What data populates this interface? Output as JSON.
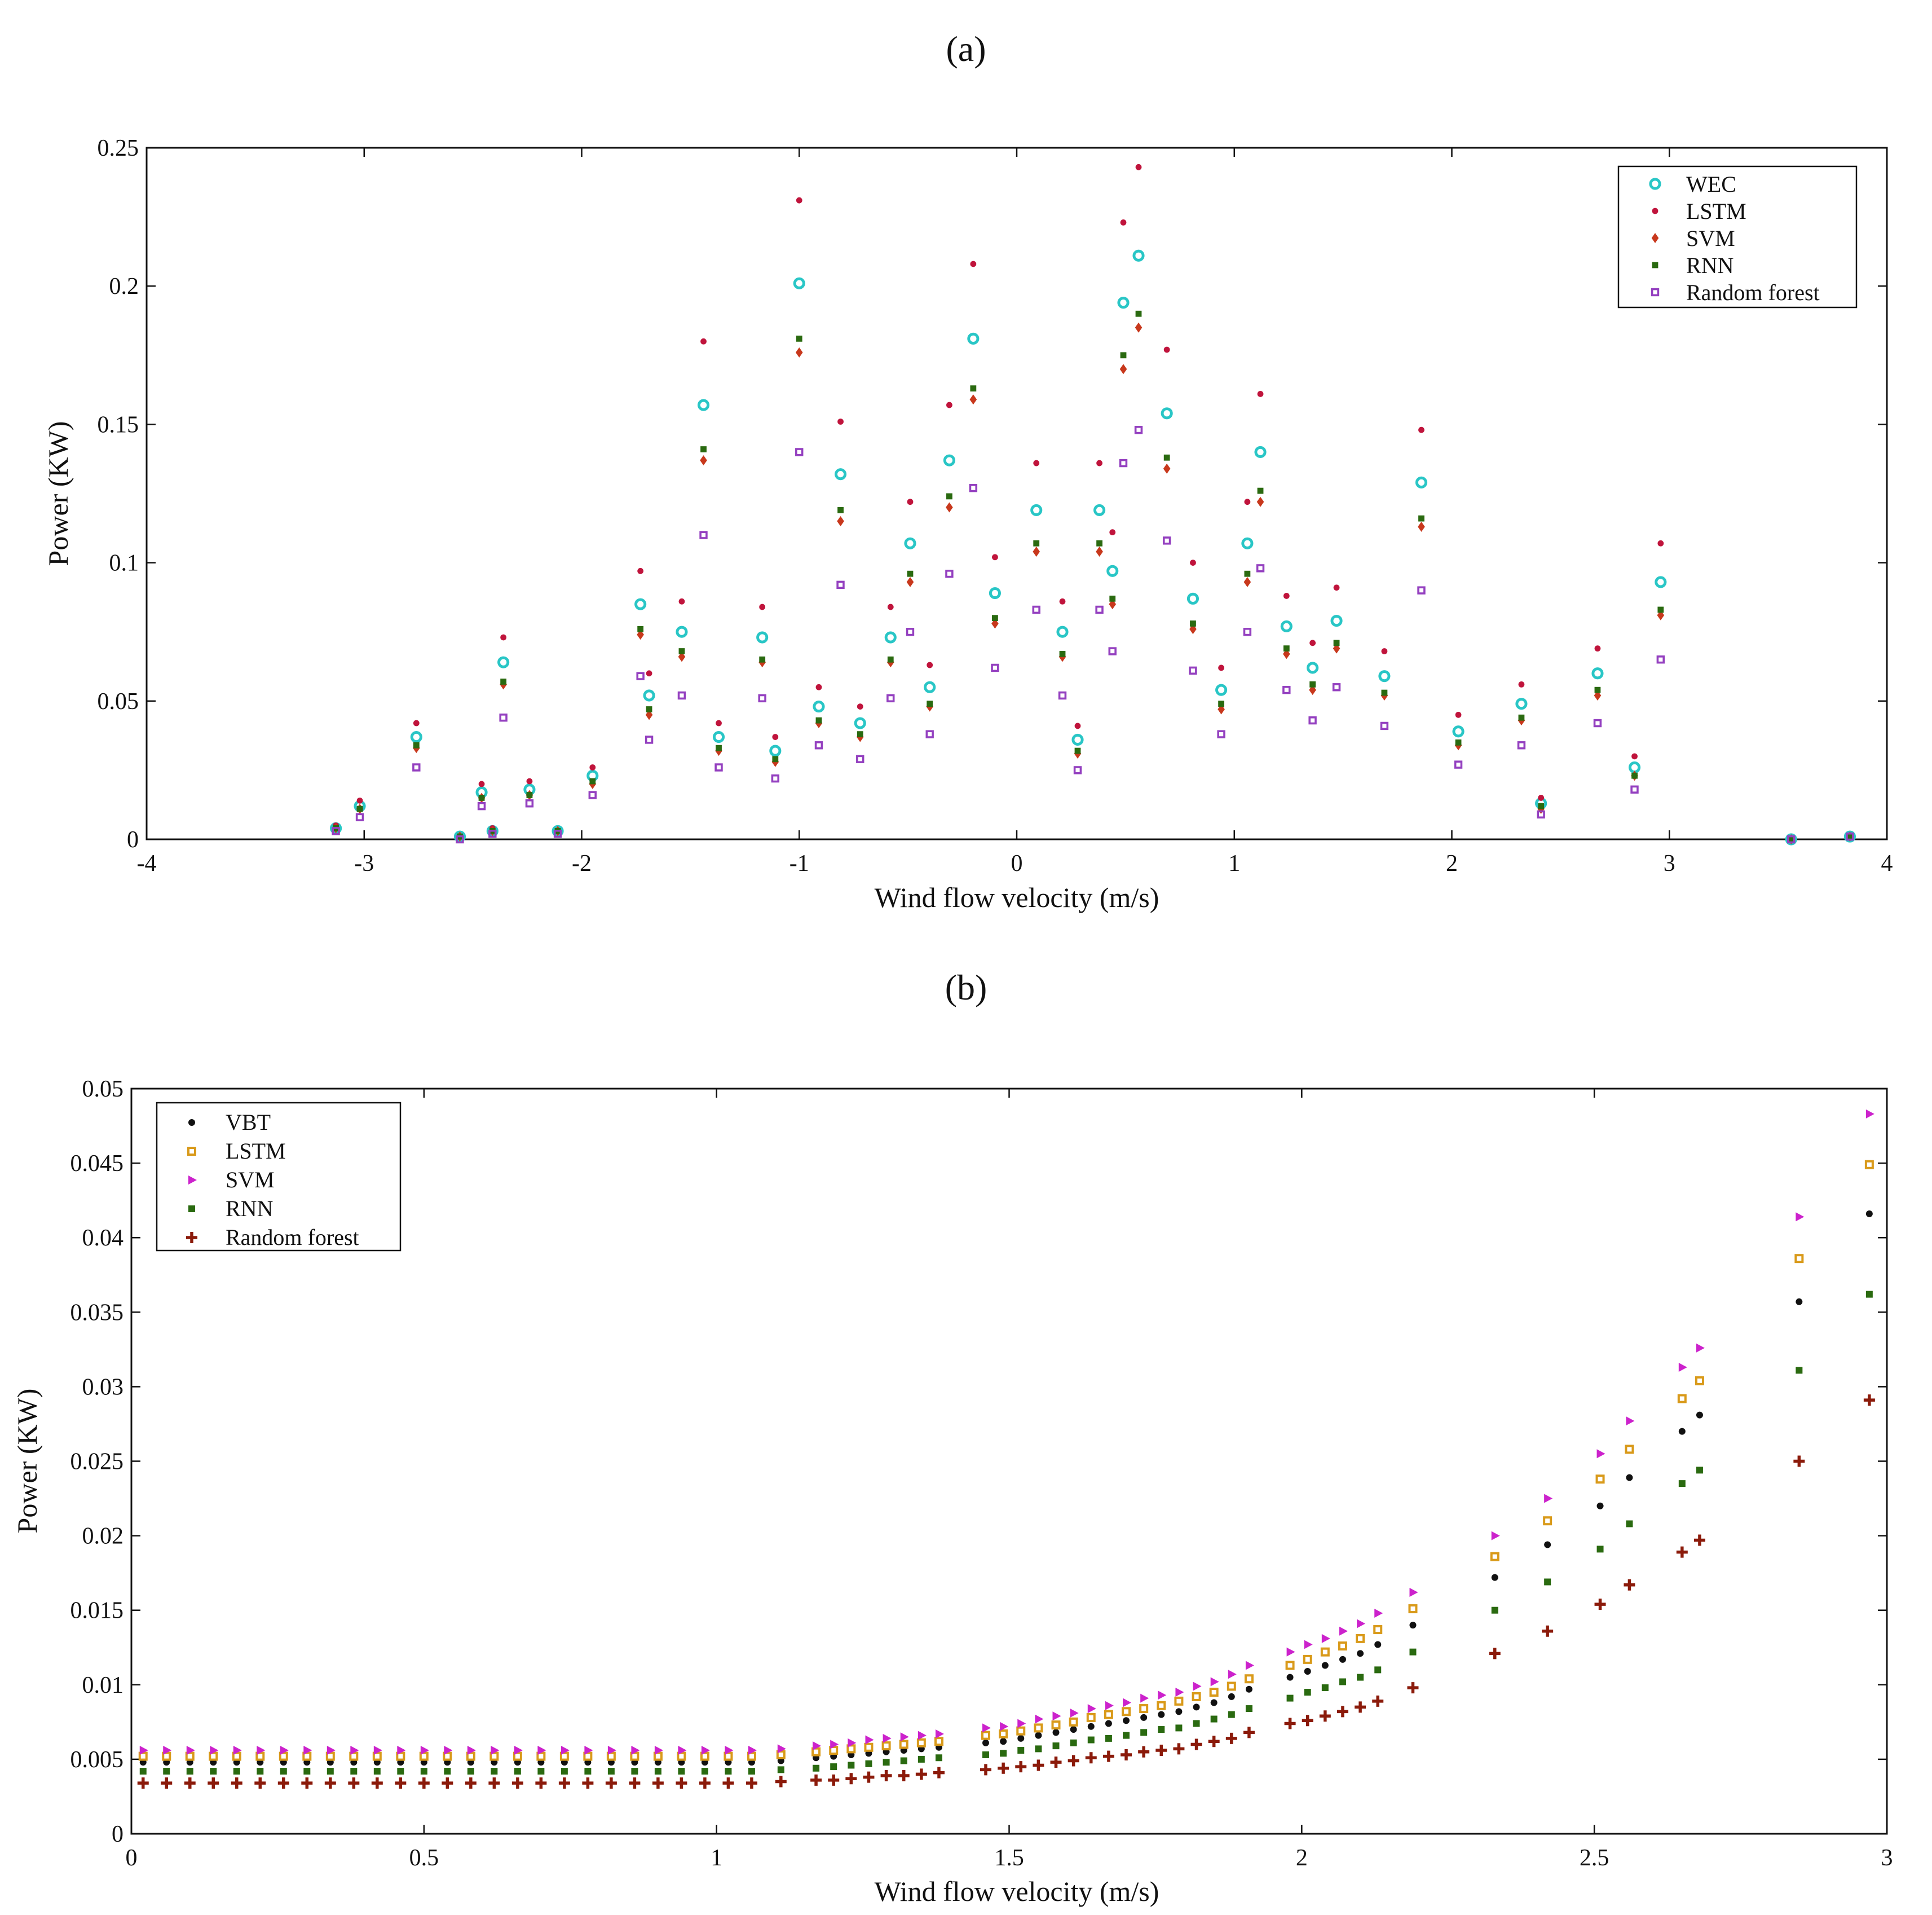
{
  "chart_data": [
    {
      "panel_label": "(a)",
      "type": "scatter",
      "xlabel": "Wind flow velocity (m/s)",
      "ylabel": "Power (KW)",
      "xlim": [
        -4,
        4
      ],
      "ylim": [
        0,
        0.25
      ],
      "xticks": [
        -4,
        -3,
        -2,
        -1,
        0,
        1,
        2,
        3,
        4
      ],
      "xtick_labels": [
        "-4",
        "-3",
        "-2",
        "-1",
        "0",
        "1",
        "2",
        "3",
        "4"
      ],
      "yticks": [
        0,
        0.05,
        0.1,
        0.15,
        0.2,
        0.25
      ],
      "ytick_labels": [
        "0",
        "0.05",
        "0.1",
        "0.15",
        "0.2",
        "0.25"
      ],
      "grid": false,
      "legend_position": "top-right",
      "series": [
        {
          "name": "WEC",
          "color": "#29c6c6",
          "marker": "ring"
        },
        {
          "name": "LSTM",
          "color": "#c0143c",
          "marker": "dot"
        },
        {
          "name": "SVM",
          "color": "#c8381c",
          "marker": "diamond"
        },
        {
          "name": "RNN",
          "color": "#2a6a10",
          "marker": "square"
        },
        {
          "name": "Random forest",
          "color": "#9440c0",
          "marker": "hollow-square"
        }
      ],
      "x": [
        -3.13,
        -3.02,
        -2.76,
        -2.56,
        -2.46,
        -2.41,
        -2.36,
        -2.24,
        -2.11,
        -1.95,
        -1.73,
        -1.69,
        -1.54,
        -1.44,
        -1.37,
        -1.17,
        -1.11,
        -1.0,
        -0.91,
        -0.81,
        -0.72,
        -0.58,
        -0.49,
        -0.4,
        -0.31,
        -0.2,
        -0.1,
        0.09,
        0.21,
        0.28,
        0.38,
        0.44,
        0.49,
        0.56,
        0.69,
        0.81,
        0.94,
        1.06,
        1.12,
        1.24,
        1.36,
        1.47,
        1.69,
        1.86,
        2.03,
        2.32,
        2.41,
        2.67,
        2.84,
        2.96,
        3.56,
        3.83
      ],
      "wec": [
        0.004,
        0.012,
        0.037,
        0.001,
        0.017,
        0.003,
        0.064,
        0.018,
        0.003,
        0.023,
        0.085,
        0.052,
        0.075,
        0.157,
        0.037,
        0.073,
        0.032,
        0.201,
        0.048,
        0.132,
        0.042,
        0.073,
        0.107,
        0.055,
        0.137,
        0.181,
        0.089,
        0.119,
        0.075,
        0.036,
        0.119,
        0.097,
        0.194,
        0.211,
        0.154,
        0.087,
        0.054,
        0.107,
        0.14,
        0.077,
        0.062,
        0.079,
        0.059,
        0.129,
        0.039,
        0.049,
        0.013,
        0.06,
        0.026,
        0.093,
        0.0,
        0.001
      ],
      "lstm": [
        0.005,
        0.014,
        0.042,
        0.001,
        0.02,
        0.004,
        0.073,
        0.021,
        0.003,
        0.026,
        0.097,
        0.06,
        0.086,
        0.18,
        0.042,
        0.084,
        0.037,
        0.231,
        0.055,
        0.151,
        0.048,
        0.084,
        0.122,
        0.063,
        0.157,
        0.208,
        0.102,
        0.136,
        0.086,
        0.041,
        0.136,
        0.111,
        0.223,
        0.243,
        0.177,
        0.1,
        0.062,
        0.122,
        0.161,
        0.088,
        0.071,
        0.091,
        0.068,
        0.148,
        0.045,
        0.056,
        0.015,
        0.069,
        0.03,
        0.107,
        0.0,
        0.001
      ],
      "svm": [
        0.004,
        0.011,
        0.033,
        0.001,
        0.015,
        0.003,
        0.056,
        0.016,
        0.003,
        0.02,
        0.074,
        0.045,
        0.066,
        0.137,
        0.032,
        0.064,
        0.028,
        0.176,
        0.042,
        0.115,
        0.037,
        0.064,
        0.093,
        0.048,
        0.12,
        0.159,
        0.078,
        0.104,
        0.066,
        0.031,
        0.104,
        0.085,
        0.17,
        0.185,
        0.134,
        0.076,
        0.047,
        0.093,
        0.122,
        0.067,
        0.054,
        0.069,
        0.052,
        0.113,
        0.034,
        0.043,
        0.011,
        0.052,
        0.023,
        0.081,
        0.0,
        0.001
      ],
      "rnn": [
        0.004,
        0.011,
        0.034,
        0.001,
        0.015,
        0.003,
        0.057,
        0.016,
        0.003,
        0.021,
        0.076,
        0.047,
        0.068,
        0.141,
        0.033,
        0.065,
        0.029,
        0.181,
        0.043,
        0.119,
        0.038,
        0.065,
        0.096,
        0.049,
        0.124,
        0.163,
        0.08,
        0.107,
        0.067,
        0.032,
        0.107,
        0.087,
        0.175,
        0.19,
        0.138,
        0.078,
        0.049,
        0.096,
        0.126,
        0.069,
        0.056,
        0.071,
        0.053,
        0.116,
        0.035,
        0.044,
        0.012,
        0.054,
        0.023,
        0.083,
        0.0,
        0.001
      ],
      "random_forest": [
        0.003,
        0.008,
        0.026,
        0.0,
        0.012,
        0.002,
        0.044,
        0.013,
        0.002,
        0.016,
        0.059,
        0.036,
        0.052,
        0.11,
        0.026,
        0.051,
        0.022,
        0.14,
        0.034,
        0.092,
        0.029,
        0.051,
        0.075,
        0.038,
        0.096,
        0.127,
        0.062,
        0.083,
        0.052,
        0.025,
        0.083,
        0.068,
        0.136,
        0.148,
        0.108,
        0.061,
        0.038,
        0.075,
        0.098,
        0.054,
        0.043,
        0.055,
        0.041,
        0.09,
        0.027,
        0.034,
        0.009,
        0.042,
        0.018,
        0.065,
        0.0,
        0.001
      ]
    },
    {
      "panel_label": "(b)",
      "type": "scatter",
      "xlabel": "Wind flow velocity (m/s)",
      "ylabel": "Power (KW)",
      "xlim": [
        0,
        3
      ],
      "ylim": [
        0,
        0.05
      ],
      "xticks": [
        0,
        0.5,
        1,
        1.5,
        2,
        2.5,
        3
      ],
      "xtick_labels": [
        "0",
        "0.5",
        "1",
        "1.5",
        "2",
        "2.5",
        "3"
      ],
      "yticks": [
        0,
        0.005,
        0.01,
        0.015,
        0.02,
        0.025,
        0.03,
        0.035,
        0.04,
        0.045,
        0.05
      ],
      "ytick_labels": [
        "0",
        "0.005",
        "0.01",
        "0.015",
        "0.02",
        "0.025",
        "0.03",
        "0.035",
        "0.04",
        "0.045",
        "0.05"
      ],
      "grid": false,
      "legend_position": "top-left",
      "series": [
        {
          "name": "VBT",
          "color": "#111111",
          "marker": "dot"
        },
        {
          "name": "LSTM",
          "color": "#d99a1a",
          "marker": "hollow-square"
        },
        {
          "name": "SVM",
          "color": "#cc22cc",
          "marker": "triangle-right"
        },
        {
          "name": "RNN",
          "color": "#2a6a10",
          "marker": "square"
        },
        {
          "name": "Random forest",
          "color": "#8b1a0a",
          "marker": "plus"
        }
      ],
      "x": [
        0.02,
        0.06,
        0.1,
        0.14,
        0.18,
        0.22,
        0.26,
        0.3,
        0.34,
        0.38,
        0.42,
        0.46,
        0.5,
        0.54,
        0.58,
        0.62,
        0.66,
        0.7,
        0.74,
        0.78,
        0.82,
        0.86,
        0.9,
        0.94,
        0.98,
        1.02,
        1.06,
        1.11,
        1.17,
        1.2,
        1.23,
        1.26,
        1.29,
        1.32,
        1.35,
        1.38,
        1.46,
        1.49,
        1.52,
        1.55,
        1.58,
        1.61,
        1.64,
        1.67,
        1.7,
        1.73,
        1.76,
        1.79,
        1.82,
        1.85,
        1.88,
        1.91,
        1.98,
        2.01,
        2.04,
        2.07,
        2.1,
        2.13,
        2.19,
        2.33,
        2.42,
        2.51,
        2.56,
        2.65,
        2.68,
        2.85,
        2.97
      ],
      "vbt": [
        0.0048,
        0.0048,
        0.0048,
        0.0048,
        0.0048,
        0.0048,
        0.0048,
        0.0048,
        0.0048,
        0.0048,
        0.0048,
        0.0048,
        0.0048,
        0.0048,
        0.0048,
        0.0048,
        0.0048,
        0.0048,
        0.0048,
        0.0048,
        0.0048,
        0.0048,
        0.0048,
        0.0048,
        0.0048,
        0.0048,
        0.0048,
        0.0049,
        0.0051,
        0.0052,
        0.0053,
        0.0054,
        0.0055,
        0.0056,
        0.0057,
        0.0058,
        0.0061,
        0.0062,
        0.0064,
        0.0066,
        0.0068,
        0.007,
        0.0072,
        0.0074,
        0.0076,
        0.0078,
        0.008,
        0.0082,
        0.0085,
        0.0088,
        0.0092,
        0.0097,
        0.0105,
        0.0109,
        0.0113,
        0.0117,
        0.0121,
        0.0127,
        0.014,
        0.0172,
        0.0194,
        0.022,
        0.0239,
        0.027,
        0.0281,
        0.0357,
        0.0416
      ],
      "lstm": [
        0.0052,
        0.0052,
        0.0052,
        0.0052,
        0.0052,
        0.0052,
        0.0052,
        0.0052,
        0.0052,
        0.0052,
        0.0052,
        0.0052,
        0.0052,
        0.0052,
        0.0052,
        0.0052,
        0.0052,
        0.0052,
        0.0052,
        0.0052,
        0.0052,
        0.0052,
        0.0052,
        0.0052,
        0.0052,
        0.0052,
        0.0052,
        0.0053,
        0.0055,
        0.0056,
        0.0057,
        0.0058,
        0.0059,
        0.006,
        0.0061,
        0.0062,
        0.0066,
        0.0067,
        0.0069,
        0.0071,
        0.0073,
        0.0075,
        0.0078,
        0.008,
        0.0082,
        0.0084,
        0.0086,
        0.0089,
        0.0092,
        0.0095,
        0.0099,
        0.0104,
        0.0113,
        0.0117,
        0.0122,
        0.0126,
        0.0131,
        0.0137,
        0.0151,
        0.0186,
        0.021,
        0.0238,
        0.0258,
        0.0292,
        0.0304,
        0.0386,
        0.0449
      ],
      "svm": [
        0.0056,
        0.0056,
        0.0056,
        0.0056,
        0.0056,
        0.0056,
        0.0056,
        0.0056,
        0.0056,
        0.0056,
        0.0056,
        0.0056,
        0.0056,
        0.0056,
        0.0056,
        0.0056,
        0.0056,
        0.0056,
        0.0056,
        0.0056,
        0.0056,
        0.0056,
        0.0056,
        0.0056,
        0.0056,
        0.0056,
        0.0056,
        0.0057,
        0.0059,
        0.006,
        0.0061,
        0.0063,
        0.0064,
        0.0065,
        0.0066,
        0.0067,
        0.0071,
        0.0072,
        0.0074,
        0.0077,
        0.0079,
        0.0081,
        0.0084,
        0.0086,
        0.0088,
        0.0091,
        0.0093,
        0.0095,
        0.0099,
        0.0102,
        0.0107,
        0.0113,
        0.0122,
        0.0127,
        0.0131,
        0.0136,
        0.0141,
        0.0148,
        0.0162,
        0.02,
        0.0225,
        0.0255,
        0.0277,
        0.0313,
        0.0326,
        0.0414,
        0.0483
      ],
      "rnn": [
        0.0042,
        0.0042,
        0.0042,
        0.0042,
        0.0042,
        0.0042,
        0.0042,
        0.0042,
        0.0042,
        0.0042,
        0.0042,
        0.0042,
        0.0042,
        0.0042,
        0.0042,
        0.0042,
        0.0042,
        0.0042,
        0.0042,
        0.0042,
        0.0042,
        0.0042,
        0.0042,
        0.0042,
        0.0042,
        0.0042,
        0.0042,
        0.0043,
        0.0044,
        0.0045,
        0.0046,
        0.0047,
        0.0048,
        0.0049,
        0.005,
        0.0051,
        0.0053,
        0.0054,
        0.0056,
        0.0057,
        0.0059,
        0.0061,
        0.0063,
        0.0064,
        0.0066,
        0.0068,
        0.007,
        0.0071,
        0.0074,
        0.0077,
        0.008,
        0.0084,
        0.0091,
        0.0095,
        0.0098,
        0.0102,
        0.0105,
        0.011,
        0.0122,
        0.015,
        0.0169,
        0.0191,
        0.0208,
        0.0235,
        0.0244,
        0.0311,
        0.0362
      ],
      "random_forest": [
        0.0034,
        0.0034,
        0.0034,
        0.0034,
        0.0034,
        0.0034,
        0.0034,
        0.0034,
        0.0034,
        0.0034,
        0.0034,
        0.0034,
        0.0034,
        0.0034,
        0.0034,
        0.0034,
        0.0034,
        0.0034,
        0.0034,
        0.0034,
        0.0034,
        0.0034,
        0.0034,
        0.0034,
        0.0034,
        0.0034,
        0.0034,
        0.0035,
        0.0036,
        0.0036,
        0.0037,
        0.0038,
        0.0039,
        0.0039,
        0.004,
        0.0041,
        0.0043,
        0.0044,
        0.0045,
        0.0046,
        0.0048,
        0.0049,
        0.0051,
        0.0052,
        0.0053,
        0.0055,
        0.0056,
        0.0057,
        0.006,
        0.0062,
        0.0064,
        0.0068,
        0.0074,
        0.0076,
        0.0079,
        0.0082,
        0.0085,
        0.0089,
        0.0098,
        0.0121,
        0.0136,
        0.0154,
        0.0167,
        0.0189,
        0.0197,
        0.025,
        0.0291
      ]
    }
  ]
}
